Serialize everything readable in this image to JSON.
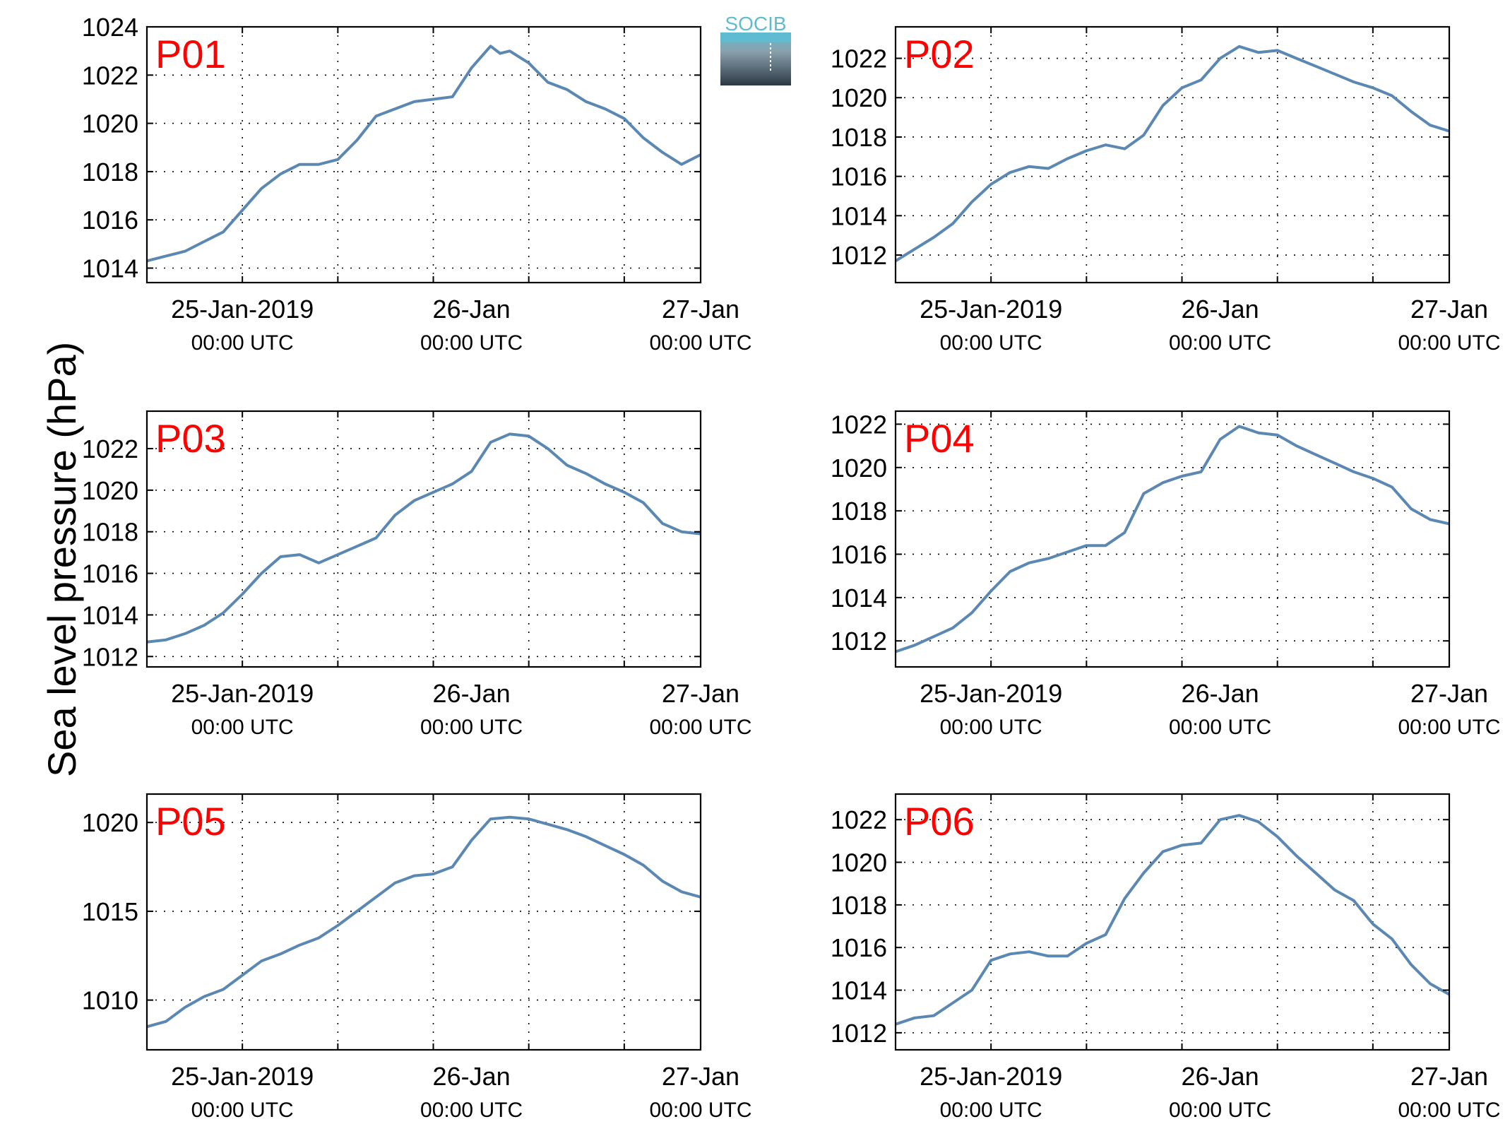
{
  "figure": {
    "ylabel": "Sea level pressure (hPa)",
    "logo_text": "SOCIB",
    "line_color": "#5b88b2",
    "label_color": "#ff0000"
  },
  "chart_data": [
    {
      "type": "line",
      "label": "P01",
      "xticks": [
        {
          "main": "25-Jan-2019",
          "sub": "00:00 UTC",
          "x": 0
        },
        {
          "main": "26-Jan",
          "sub": "00:00 UTC",
          "x": 24
        },
        {
          "main": "27-Jan",
          "sub": "00:00 UTC",
          "x": 48
        }
      ],
      "xlim": [
        -10,
        48
      ],
      "ylim": [
        1013.4,
        1024
      ],
      "yticks": [
        1014,
        1016,
        1018,
        1020,
        1022,
        1024
      ],
      "grid": true,
      "x": [
        -10,
        -8,
        -6,
        -4,
        -2,
        0,
        2,
        4,
        6,
        8,
        10,
        12,
        14,
        16,
        18,
        20,
        22,
        24,
        26,
        27,
        28,
        30,
        32,
        34,
        36,
        38,
        40,
        42,
        44,
        46,
        48
      ],
      "y": [
        1014.3,
        1014.5,
        1014.7,
        1015.1,
        1015.5,
        1016.4,
        1017.3,
        1017.9,
        1018.3,
        1018.3,
        1018.5,
        1019.3,
        1020.3,
        1020.6,
        1020.9,
        1021.0,
        1021.1,
        1022.3,
        1023.2,
        1022.9,
        1023.0,
        1022.5,
        1021.7,
        1021.4,
        1020.9,
        1020.6,
        1020.2,
        1019.4,
        1018.8,
        1018.3,
        1018.7
      ]
    },
    {
      "type": "line",
      "label": "P02",
      "xticks": [
        {
          "main": "25-Jan-2019",
          "sub": "00:00 UTC",
          "x": 0
        },
        {
          "main": "26-Jan",
          "sub": "00:00 UTC",
          "x": 24
        },
        {
          "main": "27-Jan",
          "sub": "00:00 UTC",
          "x": 48
        }
      ],
      "xlim": [
        -10,
        48
      ],
      "ylim": [
        1010.6,
        1023.6
      ],
      "yticks": [
        1012,
        1014,
        1016,
        1018,
        1020,
        1022
      ],
      "grid": true,
      "x": [
        -10,
        -8,
        -6,
        -4,
        -2,
        0,
        2,
        4,
        6,
        8,
        10,
        12,
        14,
        16,
        18,
        20,
        22,
        24,
        26,
        28,
        30,
        32,
        34,
        36,
        38,
        40,
        42,
        44,
        46,
        48
      ],
      "y": [
        1011.7,
        1012.3,
        1012.9,
        1013.6,
        1014.7,
        1015.6,
        1016.2,
        1016.5,
        1016.4,
        1016.9,
        1017.3,
        1017.6,
        1017.4,
        1018.1,
        1019.6,
        1020.5,
        1020.9,
        1022.0,
        1022.6,
        1022.3,
        1022.4,
        1022.0,
        1021.6,
        1021.2,
        1020.8,
        1020.5,
        1020.1,
        1019.3,
        1018.6,
        1018.3
      ]
    },
    {
      "type": "line",
      "label": "P03",
      "xticks": [
        {
          "main": "25-Jan-2019",
          "sub": "00:00 UTC",
          "x": 0
        },
        {
          "main": "26-Jan",
          "sub": "00:00 UTC",
          "x": 24
        },
        {
          "main": "27-Jan",
          "sub": "00:00 UTC",
          "x": 48
        }
      ],
      "xlim": [
        -10,
        48
      ],
      "ylim": [
        1011.5,
        1023.8
      ],
      "yticks": [
        1012,
        1014,
        1016,
        1018,
        1020,
        1022
      ],
      "grid": true,
      "x": [
        -10,
        -8,
        -6,
        -4,
        -2,
        0,
        2,
        4,
        6,
        8,
        10,
        12,
        14,
        16,
        18,
        20,
        22,
        24,
        26,
        28,
        30,
        32,
        34,
        36,
        38,
        40,
        42,
        44,
        46,
        48
      ],
      "y": [
        1012.7,
        1012.8,
        1013.1,
        1013.5,
        1014.1,
        1015.0,
        1016.0,
        1016.8,
        1016.9,
        1016.5,
        1016.9,
        1017.3,
        1017.7,
        1018.8,
        1019.5,
        1019.9,
        1020.3,
        1020.9,
        1022.3,
        1022.7,
        1022.6,
        1022.0,
        1021.2,
        1020.8,
        1020.3,
        1019.9,
        1019.4,
        1018.4,
        1018.0,
        1017.9
      ]
    },
    {
      "type": "line",
      "label": "P04",
      "xticks": [
        {
          "main": "25-Jan-2019",
          "sub": "00:00 UTC",
          "x": 0
        },
        {
          "main": "26-Jan",
          "sub": "00:00 UTC",
          "x": 24
        },
        {
          "main": "27-Jan",
          "sub": "00:00 UTC",
          "x": 48
        }
      ],
      "xlim": [
        -10,
        48
      ],
      "ylim": [
        1010.8,
        1022.6
      ],
      "yticks": [
        1012,
        1014,
        1016,
        1018,
        1020,
        1022
      ],
      "grid": true,
      "x": [
        -10,
        -8,
        -6,
        -4,
        -2,
        0,
        2,
        4,
        6,
        8,
        10,
        12,
        14,
        16,
        18,
        20,
        22,
        24,
        26,
        28,
        30,
        32,
        34,
        36,
        38,
        40,
        42,
        44,
        46,
        48
      ],
      "y": [
        1011.5,
        1011.8,
        1012.2,
        1012.6,
        1013.3,
        1014.3,
        1015.2,
        1015.6,
        1015.8,
        1016.1,
        1016.4,
        1016.4,
        1017.0,
        1018.8,
        1019.3,
        1019.6,
        1019.8,
        1021.3,
        1021.9,
        1021.6,
        1021.5,
        1021.0,
        1020.6,
        1020.2,
        1019.8,
        1019.5,
        1019.1,
        1018.1,
        1017.6,
        1017.4
      ]
    },
    {
      "type": "line",
      "label": "P05",
      "xticks": [
        {
          "main": "25-Jan-2019",
          "sub": "00:00 UTC",
          "x": 0
        },
        {
          "main": "26-Jan",
          "sub": "00:00 UTC",
          "x": 24
        },
        {
          "main": "27-Jan",
          "sub": "00:00 UTC",
          "x": 48
        }
      ],
      "xlim": [
        -10,
        48
      ],
      "ylim": [
        1007.2,
        1021.6
      ],
      "yticks": [
        1010,
        1015,
        1020
      ],
      "grid": true,
      "x": [
        -10,
        -8,
        -6,
        -4,
        -2,
        0,
        2,
        4,
        6,
        8,
        10,
        12,
        14,
        16,
        18,
        20,
        22,
        24,
        26,
        28,
        30,
        32,
        34,
        36,
        38,
        40,
        42,
        44,
        46,
        48
      ],
      "y": [
        1008.5,
        1008.8,
        1009.6,
        1010.2,
        1010.6,
        1011.4,
        1012.2,
        1012.6,
        1013.1,
        1013.5,
        1014.2,
        1015.0,
        1015.8,
        1016.6,
        1017.0,
        1017.1,
        1017.5,
        1019.0,
        1020.2,
        1020.3,
        1020.2,
        1019.9,
        1019.6,
        1019.2,
        1018.7,
        1018.2,
        1017.6,
        1016.7,
        1016.1,
        1015.8
      ]
    },
    {
      "type": "line",
      "label": "P06",
      "xticks": [
        {
          "main": "25-Jan-2019",
          "sub": "00:00 UTC",
          "x": 0
        },
        {
          "main": "26-Jan",
          "sub": "00:00 UTC",
          "x": 24
        },
        {
          "main": "27-Jan",
          "sub": "00:00 UTC",
          "x": 48
        }
      ],
      "xlim": [
        -10,
        48
      ],
      "ylim": [
        1011.2,
        1023.2
      ],
      "yticks": [
        1012,
        1014,
        1016,
        1018,
        1020,
        1022
      ],
      "grid": true,
      "x": [
        -10,
        -8,
        -6,
        -4,
        -2,
        0,
        2,
        4,
        6,
        8,
        10,
        12,
        14,
        16,
        18,
        20,
        22,
        24,
        26,
        28,
        30,
        32,
        34,
        36,
        38,
        40,
        42,
        44,
        46,
        48
      ],
      "y": [
        1012.4,
        1012.7,
        1012.8,
        1013.4,
        1014.0,
        1015.4,
        1015.7,
        1015.8,
        1015.6,
        1015.6,
        1016.2,
        1016.6,
        1018.3,
        1019.5,
        1020.5,
        1020.8,
        1020.9,
        1022.0,
        1022.2,
        1021.9,
        1021.2,
        1020.3,
        1019.5,
        1018.7,
        1018.2,
        1017.1,
        1016.4,
        1015.2,
        1014.3,
        1013.8
      ]
    }
  ]
}
